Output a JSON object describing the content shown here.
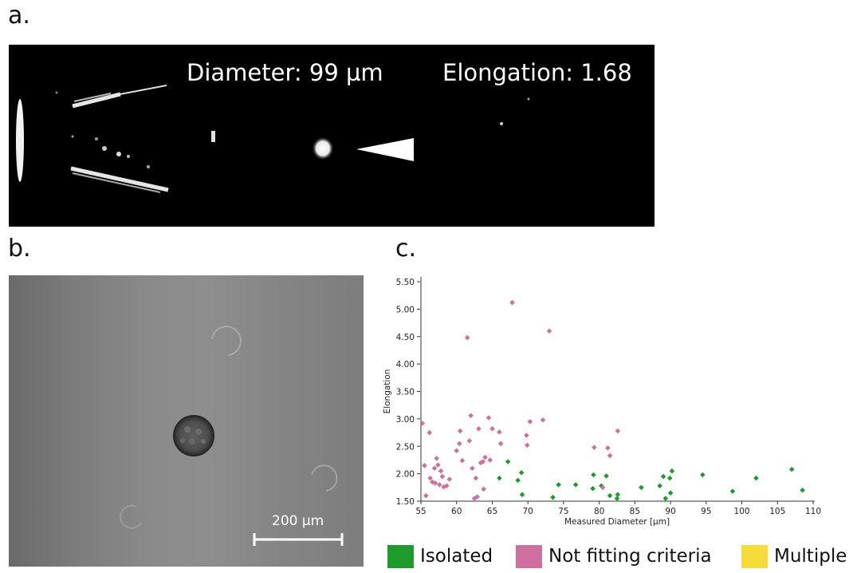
{
  "labels": {
    "a": "a.",
    "b": "b.",
    "c": "c."
  },
  "panel_a": {
    "diameter_text": "Diameter: 99 µm",
    "elongation_text": "Elongation: 1.68",
    "arrowhead_icon": "triangle-arrowhead"
  },
  "panel_b": {
    "scale_bar_label": "200 µm"
  },
  "legend": [
    {
      "label": "Isolated",
      "color": "#1f9a2c"
    },
    {
      "label": "Not fitting criteria",
      "color": "#cf6fa0"
    },
    {
      "label": "Multiple",
      "color": "#f5dc3a"
    }
  ],
  "chart_data": {
    "type": "scatter",
    "xlabel": "Measured Diameter [µm]",
    "ylabel": "Elongation",
    "xlim": [
      55,
      110
    ],
    "ylim": [
      1.5,
      5.5
    ],
    "xticks": [
      "55",
      "60",
      "65",
      "70",
      "75",
      "80",
      "85",
      "90",
      "95",
      "100",
      "105",
      "110"
    ],
    "yticks": [
      "1.50",
      "2.00",
      "2.50",
      "3.00",
      "3.50",
      "4.00",
      "4.50",
      "5.00",
      "5.50"
    ],
    "grid": false,
    "series": [
      {
        "name": "Isolated",
        "color": "#1f9a2c",
        "points": [
          [
            66.0,
            1.92
          ],
          [
            67.2,
            2.22
          ],
          [
            68.6,
            1.88
          ],
          [
            69.1,
            2.02
          ],
          [
            69.2,
            1.62
          ],
          [
            73.5,
            1.57
          ],
          [
            74.3,
            1.8
          ],
          [
            76.7,
            1.8
          ],
          [
            79.1,
            1.73
          ],
          [
            79.2,
            1.98
          ],
          [
            80.3,
            1.78
          ],
          [
            81.0,
            1.96
          ],
          [
            81.5,
            1.6
          ],
          [
            82.5,
            1.55
          ],
          [
            82.6,
            1.62
          ],
          [
            85.9,
            1.75
          ],
          [
            88.5,
            1.78
          ],
          [
            89.0,
            1.95
          ],
          [
            89.3,
            1.55
          ],
          [
            89.9,
            1.92
          ],
          [
            90.0,
            1.65
          ],
          [
            90.2,
            2.05
          ],
          [
            94.5,
            1.98
          ],
          [
            98.7,
            1.68
          ],
          [
            102.0,
            1.92
          ],
          [
            107.0,
            2.08
          ],
          [
            108.5,
            1.7
          ]
        ]
      },
      {
        "name": "Not fitting criteria",
        "color": "#cf6fa0",
        "points": [
          [
            55.2,
            2.92
          ],
          [
            55.5,
            2.15
          ],
          [
            55.7,
            1.6
          ],
          [
            56.2,
            2.75
          ],
          [
            56.3,
            1.92
          ],
          [
            56.6,
            1.85
          ],
          [
            56.9,
            2.1
          ],
          [
            57.0,
            1.83
          ],
          [
            57.2,
            2.28
          ],
          [
            57.4,
            2.16
          ],
          [
            57.6,
            1.8
          ],
          [
            57.8,
            2.05
          ],
          [
            58.0,
            1.95
          ],
          [
            58.2,
            1.76
          ],
          [
            58.6,
            1.78
          ],
          [
            59.0,
            1.9
          ],
          [
            60.0,
            2.42
          ],
          [
            60.4,
            2.55
          ],
          [
            60.5,
            2.78
          ],
          [
            60.8,
            2.24
          ],
          [
            61.5,
            4.48
          ],
          [
            61.8,
            2.6
          ],
          [
            62.0,
            3.06
          ],
          [
            62.2,
            2.1
          ],
          [
            62.5,
            1.55
          ],
          [
            62.7,
            1.92
          ],
          [
            62.9,
            1.58
          ],
          [
            63.1,
            2.82
          ],
          [
            63.4,
            2.2
          ],
          [
            63.7,
            2.22
          ],
          [
            63.8,
            1.72
          ],
          [
            64.0,
            2.3
          ],
          [
            64.5,
            3.02
          ],
          [
            64.7,
            2.25
          ],
          [
            65.0,
            2.82
          ],
          [
            66.0,
            2.76
          ],
          [
            66.2,
            2.55
          ],
          [
            67.8,
            5.12
          ],
          [
            69.8,
            2.7
          ],
          [
            69.9,
            2.52
          ],
          [
            70.3,
            2.95
          ],
          [
            72.1,
            2.98
          ],
          [
            73.0,
            4.6
          ],
          [
            79.3,
            2.48
          ],
          [
            80.5,
            1.75
          ],
          [
            81.2,
            2.47
          ],
          [
            81.5,
            2.33
          ],
          [
            82.6,
            2.78
          ]
        ]
      },
      {
        "name": "Multiple",
        "color": "#f5dc3a",
        "points": []
      }
    ]
  }
}
